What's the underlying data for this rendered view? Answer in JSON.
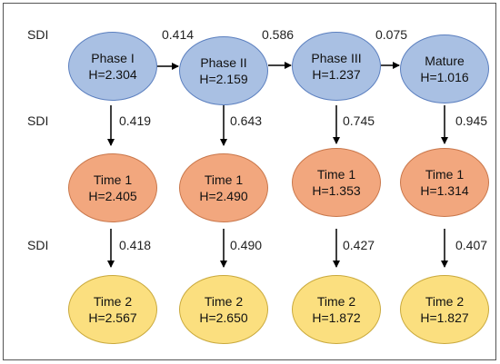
{
  "sdi_label": "SDI",
  "nodes": [
    [
      {
        "name": "Phase I",
        "h": "H=2.304"
      },
      {
        "name": "Phase II",
        "h": "H=2.159"
      },
      {
        "name": "Phase III",
        "h": "H=1.237"
      },
      {
        "name": "Mature",
        "h": "H=1.016"
      }
    ],
    [
      {
        "name": "Time 1",
        "h": "H=2.405"
      },
      {
        "name": "Time 1",
        "h": "H=2.490"
      },
      {
        "name": "Time 1",
        "h": "H=1.353"
      },
      {
        "name": "Time 1",
        "h": "H=1.314"
      }
    ],
    [
      {
        "name": "Time 2",
        "h": "H=2.567"
      },
      {
        "name": "Time 2",
        "h": "H=2.650"
      },
      {
        "name": "Time 2",
        "h": "H=1.872"
      },
      {
        "name": "Time 2",
        "h": "H=1.827"
      }
    ]
  ],
  "horizontal_values": [
    "0.414",
    "0.586",
    "0.075"
  ],
  "vertical_values": [
    [
      "0.419",
      "0.643",
      "0.745",
      "0.945"
    ],
    [
      "0.418",
      "0.490",
      "0.427",
      "0.407"
    ]
  ],
  "colors": {
    "phase_fill": "#a9c0e3",
    "time1_fill": "#f2a77e",
    "time2_fill": "#fbdf7f"
  }
}
